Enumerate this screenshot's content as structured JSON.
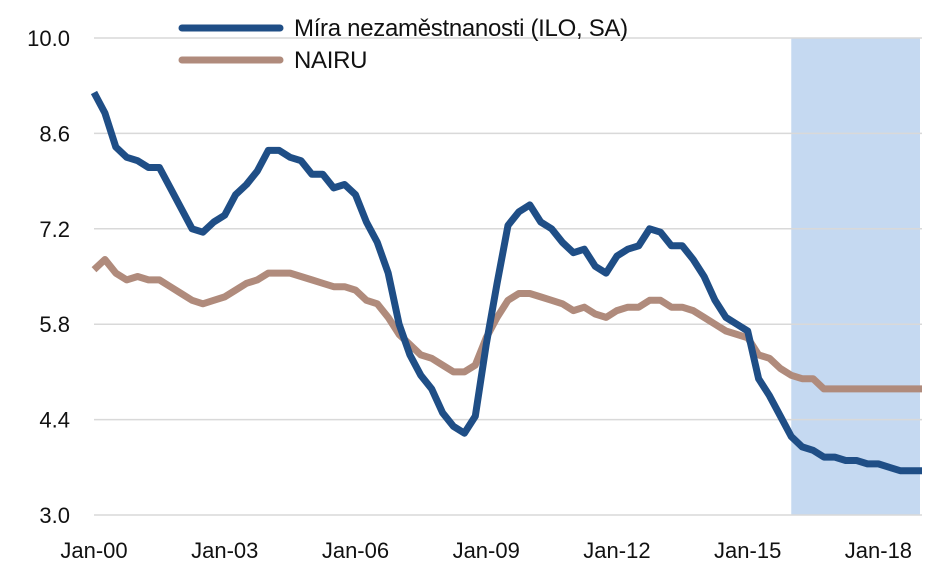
{
  "chart_data": {
    "type": "line",
    "title": "",
    "xlabel": "",
    "ylabel": "",
    "x_start": "Jan-00",
    "x_end": "Jan-18",
    "x_tick_labels": [
      "Jan-00",
      "Jan-03",
      "Jan-06",
      "Jan-09",
      "Jan-12",
      "Jan-15",
      "Jan-18"
    ],
    "x_tick_years": [
      2000,
      2003,
      2006,
      2009,
      2012,
      2015,
      2018
    ],
    "ylim": [
      3.0,
      10.0
    ],
    "y_ticks": [
      3.0,
      4.4,
      5.8,
      7.2,
      8.6,
      10.0
    ],
    "y_tick_labels": [
      "3.0",
      "4.4",
      "5.8",
      "7.2",
      "8.6",
      "10.0"
    ],
    "grid": "horizontal",
    "legend_position": "top-center",
    "shaded_region": {
      "x_from": 2016.0,
      "x_to": 2018.0,
      "color": "#c5d9f1"
    },
    "series": [
      {
        "name": "Míra nezaměstnanosti (ILO, SA)",
        "color": "#1f4e86",
        "points": [
          [
            2000.0,
            9.2
          ],
          [
            2000.25,
            8.9
          ],
          [
            2000.5,
            8.4
          ],
          [
            2000.75,
            8.25
          ],
          [
            2001.0,
            8.2
          ],
          [
            2001.25,
            8.1
          ],
          [
            2001.5,
            8.1
          ],
          [
            2001.75,
            7.8
          ],
          [
            2002.0,
            7.5
          ],
          [
            2002.25,
            7.2
          ],
          [
            2002.5,
            7.15
          ],
          [
            2002.75,
            7.3
          ],
          [
            2003.0,
            7.4
          ],
          [
            2003.25,
            7.7
          ],
          [
            2003.5,
            7.85
          ],
          [
            2003.75,
            8.05
          ],
          [
            2004.0,
            8.35
          ],
          [
            2004.25,
            8.35
          ],
          [
            2004.5,
            8.25
          ],
          [
            2004.75,
            8.2
          ],
          [
            2005.0,
            8.0
          ],
          [
            2005.25,
            8.0
          ],
          [
            2005.5,
            7.8
          ],
          [
            2005.75,
            7.85
          ],
          [
            2006.0,
            7.7
          ],
          [
            2006.25,
            7.3
          ],
          [
            2006.5,
            7.0
          ],
          [
            2006.75,
            6.55
          ],
          [
            2007.0,
            5.8
          ],
          [
            2007.25,
            5.35
          ],
          [
            2007.5,
            5.05
          ],
          [
            2007.75,
            4.85
          ],
          [
            2008.0,
            4.5
          ],
          [
            2008.25,
            4.3
          ],
          [
            2008.5,
            4.2
          ],
          [
            2008.75,
            4.45
          ],
          [
            2009.0,
            5.5
          ],
          [
            2009.25,
            6.4
          ],
          [
            2009.5,
            7.25
          ],
          [
            2009.75,
            7.45
          ],
          [
            2010.0,
            7.55
          ],
          [
            2010.25,
            7.3
          ],
          [
            2010.5,
            7.2
          ],
          [
            2010.75,
            7.0
          ],
          [
            2011.0,
            6.85
          ],
          [
            2011.25,
            6.9
          ],
          [
            2011.5,
            6.65
          ],
          [
            2011.75,
            6.55
          ],
          [
            2012.0,
            6.8
          ],
          [
            2012.25,
            6.9
          ],
          [
            2012.5,
            6.95
          ],
          [
            2012.75,
            7.2
          ],
          [
            2013.0,
            7.15
          ],
          [
            2013.25,
            6.95
          ],
          [
            2013.5,
            6.95
          ],
          [
            2013.75,
            6.75
          ],
          [
            2014.0,
            6.5
          ],
          [
            2014.25,
            6.15
          ],
          [
            2014.5,
            5.9
          ],
          [
            2014.75,
            5.8
          ],
          [
            2015.0,
            5.7
          ],
          [
            2015.25,
            5.0
          ],
          [
            2015.5,
            4.75
          ],
          [
            2015.75,
            4.45
          ],
          [
            2016.0,
            4.15
          ],
          [
            2016.25,
            4.0
          ],
          [
            2016.5,
            3.95
          ],
          [
            2016.75,
            3.85
          ],
          [
            2017.0,
            3.85
          ],
          [
            2017.25,
            3.8
          ],
          [
            2017.5,
            3.8
          ],
          [
            2017.75,
            3.75
          ],
          [
            2018.0,
            3.75
          ],
          [
            2018.25,
            3.7
          ],
          [
            2018.5,
            3.65
          ],
          [
            2018.75,
            3.65
          ],
          [
            2019.0,
            3.65
          ]
        ]
      },
      {
        "name": "NAIRU",
        "color": "#b08b7c",
        "points": [
          [
            2000.0,
            6.6
          ],
          [
            2000.25,
            6.75
          ],
          [
            2000.5,
            6.55
          ],
          [
            2000.75,
            6.45
          ],
          [
            2001.0,
            6.5
          ],
          [
            2001.25,
            6.45
          ],
          [
            2001.5,
            6.45
          ],
          [
            2001.75,
            6.35
          ],
          [
            2002.0,
            6.25
          ],
          [
            2002.25,
            6.15
          ],
          [
            2002.5,
            6.1
          ],
          [
            2002.75,
            6.15
          ],
          [
            2003.0,
            6.2
          ],
          [
            2003.25,
            6.3
          ],
          [
            2003.5,
            6.4
          ],
          [
            2003.75,
            6.45
          ],
          [
            2004.0,
            6.55
          ],
          [
            2004.25,
            6.55
          ],
          [
            2004.5,
            6.55
          ],
          [
            2004.75,
            6.5
          ],
          [
            2005.0,
            6.45
          ],
          [
            2005.25,
            6.4
          ],
          [
            2005.5,
            6.35
          ],
          [
            2005.75,
            6.35
          ],
          [
            2006.0,
            6.3
          ],
          [
            2006.25,
            6.15
          ],
          [
            2006.5,
            6.1
          ],
          [
            2006.75,
            5.9
          ],
          [
            2007.0,
            5.65
          ],
          [
            2007.25,
            5.5
          ],
          [
            2007.5,
            5.35
          ],
          [
            2007.75,
            5.3
          ],
          [
            2008.0,
            5.2
          ],
          [
            2008.25,
            5.1
          ],
          [
            2008.5,
            5.1
          ],
          [
            2008.75,
            5.2
          ],
          [
            2009.0,
            5.6
          ],
          [
            2009.25,
            5.9
          ],
          [
            2009.5,
            6.15
          ],
          [
            2009.75,
            6.25
          ],
          [
            2010.0,
            6.25
          ],
          [
            2010.25,
            6.2
          ],
          [
            2010.5,
            6.15
          ],
          [
            2010.75,
            6.1
          ],
          [
            2011.0,
            6.0
          ],
          [
            2011.25,
            6.05
          ],
          [
            2011.5,
            5.95
          ],
          [
            2011.75,
            5.9
          ],
          [
            2012.0,
            6.0
          ],
          [
            2012.25,
            6.05
          ],
          [
            2012.5,
            6.05
          ],
          [
            2012.75,
            6.15
          ],
          [
            2013.0,
            6.15
          ],
          [
            2013.25,
            6.05
          ],
          [
            2013.5,
            6.05
          ],
          [
            2013.75,
            6.0
          ],
          [
            2014.0,
            5.9
          ],
          [
            2014.25,
            5.8
          ],
          [
            2014.5,
            5.7
          ],
          [
            2014.75,
            5.65
          ],
          [
            2015.0,
            5.6
          ],
          [
            2015.25,
            5.35
          ],
          [
            2015.5,
            5.3
          ],
          [
            2015.75,
            5.15
          ],
          [
            2016.0,
            5.05
          ],
          [
            2016.25,
            5.0
          ],
          [
            2016.5,
            5.0
          ],
          [
            2016.75,
            4.85
          ],
          [
            2017.0,
            4.85
          ],
          [
            2019.0,
            4.85
          ]
        ]
      }
    ]
  }
}
